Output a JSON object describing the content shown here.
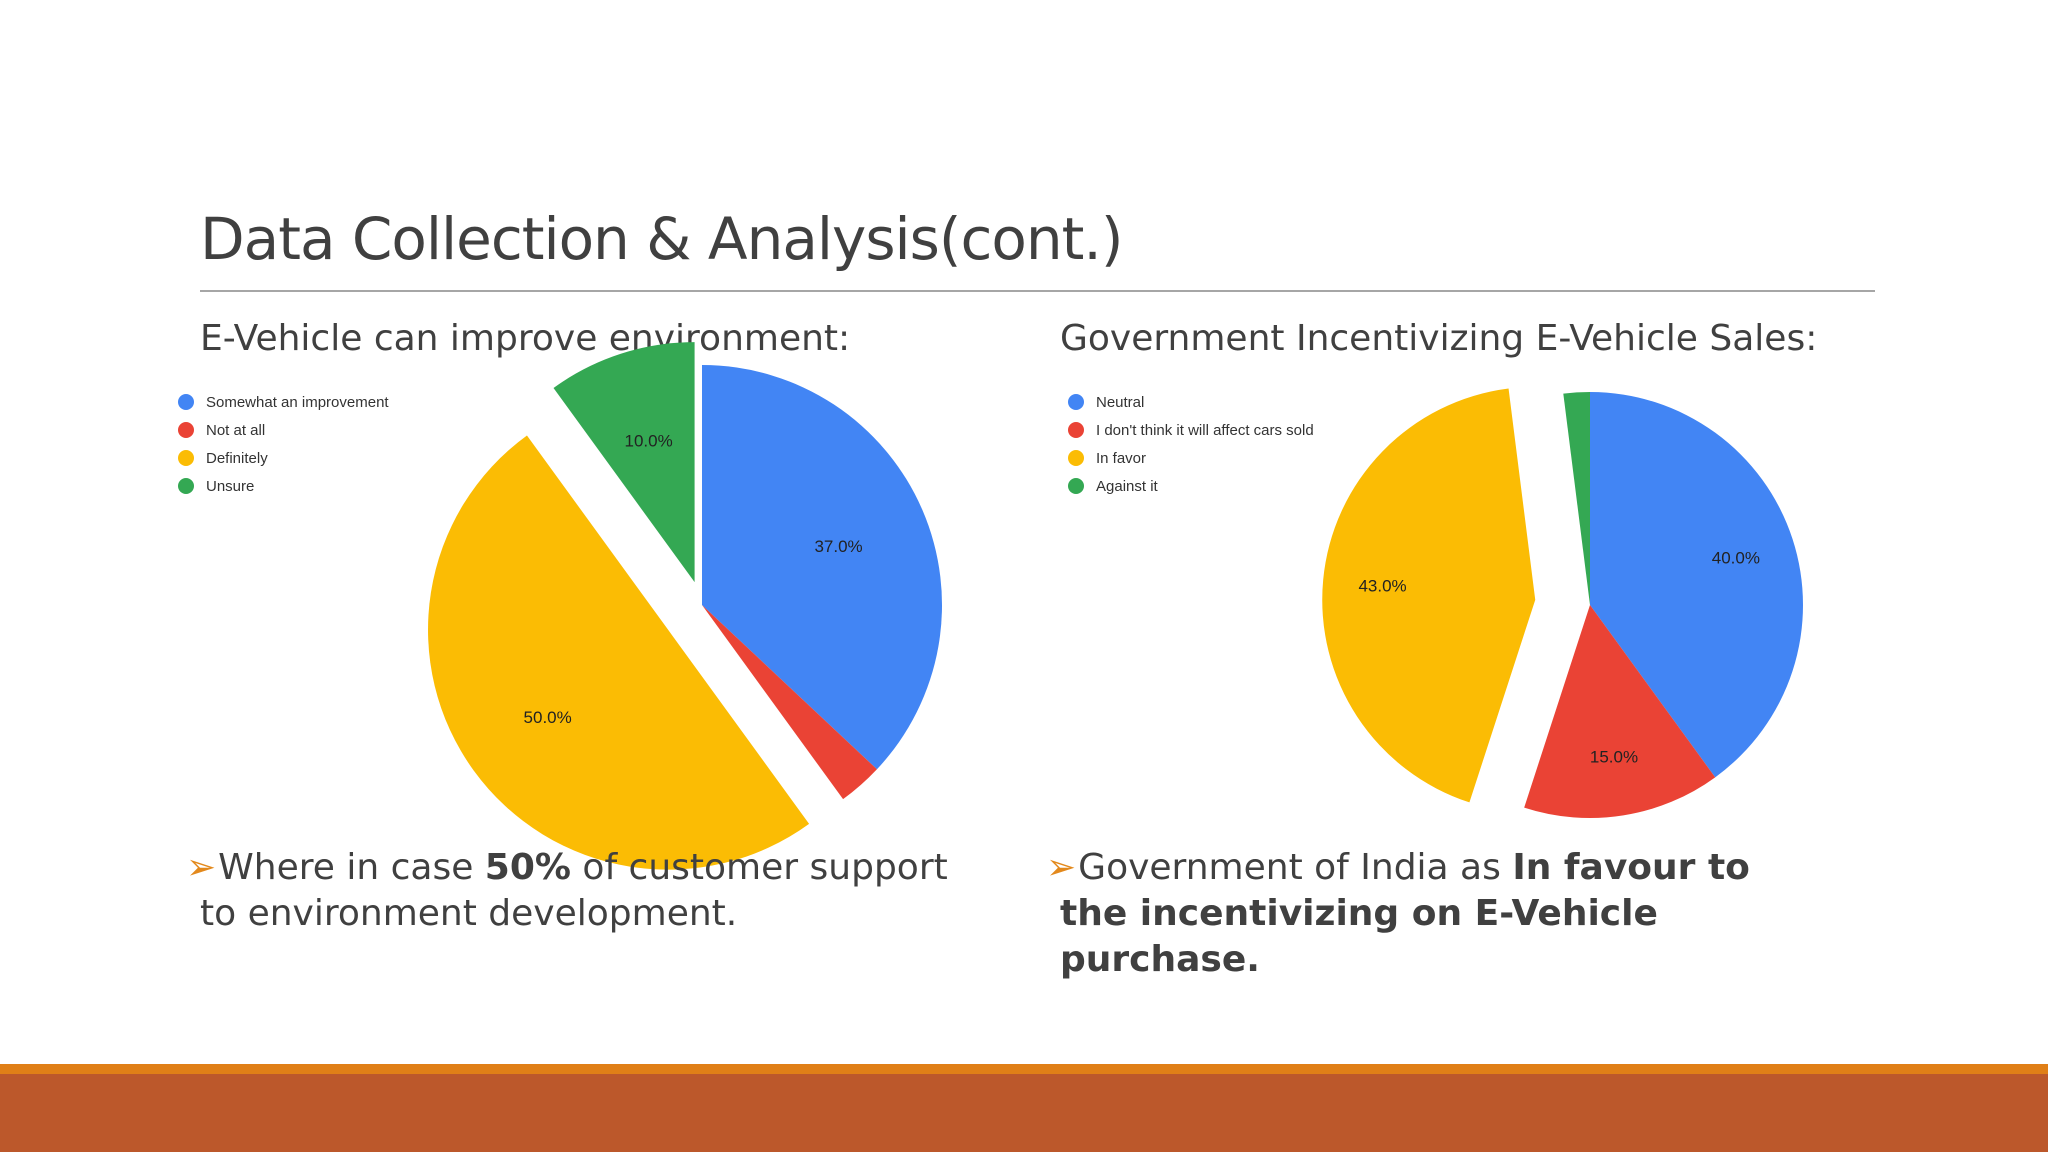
{
  "slide": {
    "title": "Data Collection & Analysis(cont.)",
    "colors": {
      "stripe": "#e07f17",
      "band": "#bc582b",
      "rule": "#a6a6a6",
      "arrow": "#e3891c"
    }
  },
  "left": {
    "heading": "E-Vehicle can improve environment:",
    "bullet": {
      "arrow": "➢",
      "pre": "Where in case ",
      "bold": "50%",
      "post": "  of customer support to environment development."
    }
  },
  "right": {
    "heading": "Government Incentivizing E-Vehicle Sales:",
    "bullet": {
      "arrow": "➢",
      "pre": "Government of India as ",
      "bold": "In favour to the incentivizing on E-Vehicle purchase."
    }
  },
  "chart_data": [
    {
      "type": "pie",
      "title": "",
      "legend_position": "top-left",
      "slices": [
        {
          "label": "Somewhat an improvement",
          "value": 37.0,
          "color": "#4285f4",
          "data_label": "37.0%"
        },
        {
          "label": "Not at all",
          "value": 3.0,
          "color": "#ea4335",
          "data_label": ""
        },
        {
          "label": "Definitely",
          "value": 50.0,
          "color": "#fbbc04",
          "data_label": "50.0%"
        },
        {
          "label": "Unsure",
          "value": 10.0,
          "color": "#34a853",
          "data_label": "10.0%"
        }
      ]
    },
    {
      "type": "pie",
      "title": "",
      "legend_position": "top-left",
      "slices": [
        {
          "label": "Neutral",
          "value": 40.0,
          "color": "#4285f4",
          "data_label": "40.0%"
        },
        {
          "label": "I don't think it will affect cars sold",
          "value": 15.0,
          "color": "#ea4335",
          "data_label": "15.0%"
        },
        {
          "label": "In favor",
          "value": 43.0,
          "color": "#fbbc04",
          "data_label": "43.0%"
        },
        {
          "label": "Against it",
          "value": 2.0,
          "color": "#34a853",
          "data_label": ""
        }
      ]
    }
  ]
}
